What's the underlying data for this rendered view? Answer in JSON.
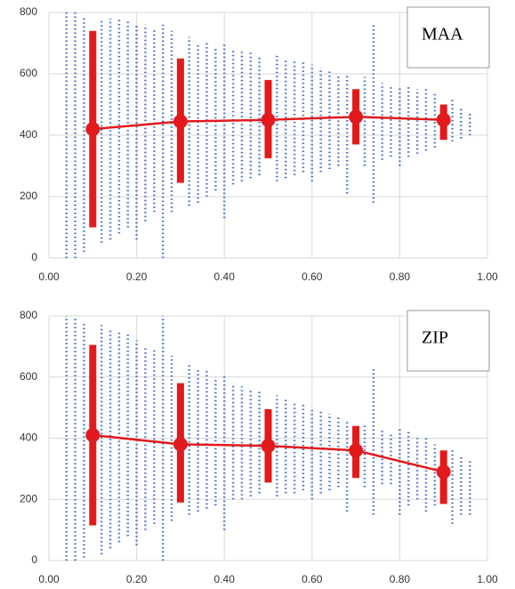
{
  "chart_data": [
    {
      "type": "scatter",
      "annotation": "MAA",
      "xlim": [
        0,
        1
      ],
      "xticks": [
        {
          "value": 0,
          "label": "0.00"
        },
        {
          "value": 0.2,
          "label": "0.20"
        },
        {
          "value": 0.4,
          "label": "0.40"
        },
        {
          "value": 0.6,
          "label": "0.60"
        },
        {
          "value": 0.8,
          "label": "0.80"
        },
        {
          "value": 1,
          "label": "1.00"
        }
      ],
      "ylim": [
        0,
        800
      ],
      "yticks": [
        0,
        200,
        400,
        600,
        800
      ],
      "grid": true,
      "strips": {
        "color": "#4472c4",
        "x": [
          0.04,
          0.06,
          0.08,
          0.12,
          0.14,
          0.16,
          0.18,
          0.2,
          0.22,
          0.24,
          0.26,
          0.28,
          0.32,
          0.34,
          0.36,
          0.38,
          0.4,
          0.42,
          0.44,
          0.46,
          0.48,
          0.52,
          0.54,
          0.56,
          0.58,
          0.6,
          0.62,
          0.64,
          0.66,
          0.68,
          0.72,
          0.74,
          0.76,
          0.78,
          0.8,
          0.82,
          0.84,
          0.86,
          0.88,
          0.92,
          0.94,
          0.96
        ],
        "low": [
          0,
          0,
          20,
          50,
          60,
          80,
          100,
          60,
          120,
          150,
          0,
          150,
          170,
          180,
          200,
          220,
          130,
          240,
          250,
          260,
          270,
          250,
          260,
          270,
          280,
          250,
          280,
          290,
          300,
          210,
          300,
          180,
          320,
          330,
          300,
          330,
          340,
          350,
          360,
          380,
          390,
          400
        ],
        "high": [
          800,
          800,
          790,
          780,
          780,
          780,
          770,
          760,
          760,
          750,
          760,
          740,
          720,
          700,
          700,
          690,
          700,
          680,
          680,
          670,
          660,
          660,
          650,
          640,
          640,
          630,
          620,
          610,
          600,
          600,
          590,
          760,
          570,
          560,
          560,
          560,
          550,
          550,
          540,
          520,
          490,
          470
        ]
      },
      "ranges": {
        "color": "#e31a1c",
        "x": [
          0.1,
          0.3,
          0.5,
          0.7,
          0.9
        ],
        "low": [
          100,
          245,
          325,
          370,
          385
        ],
        "high": [
          740,
          650,
          580,
          550,
          500
        ]
      },
      "mean": {
        "color": "#e31a1c",
        "x": [
          0.1,
          0.3,
          0.5,
          0.7,
          0.9
        ],
        "values": [
          420,
          445,
          450,
          460,
          450
        ]
      }
    },
    {
      "type": "scatter",
      "annotation": "ZIP",
      "xlim": [
        0,
        1
      ],
      "xticks": [
        {
          "value": 0,
          "label": "0.00"
        },
        {
          "value": 0.2,
          "label": "0.20"
        },
        {
          "value": 0.4,
          "label": "0.40"
        },
        {
          "value": 0.6,
          "label": "0.60"
        },
        {
          "value": 0.8,
          "label": "0.80"
        },
        {
          "value": 1,
          "label": "1.00"
        }
      ],
      "ylim": [
        0,
        800
      ],
      "yticks": [
        0,
        200,
        400,
        600,
        800
      ],
      "grid": true,
      "strips": {
        "color": "#4472c4",
        "x": [
          0.04,
          0.06,
          0.08,
          0.12,
          0.14,
          0.16,
          0.18,
          0.2,
          0.22,
          0.24,
          0.26,
          0.28,
          0.32,
          0.34,
          0.36,
          0.38,
          0.4,
          0.42,
          0.44,
          0.46,
          0.48,
          0.52,
          0.54,
          0.56,
          0.58,
          0.6,
          0.62,
          0.64,
          0.66,
          0.68,
          0.72,
          0.74,
          0.76,
          0.78,
          0.8,
          0.82,
          0.84,
          0.86,
          0.88,
          0.92,
          0.94,
          0.96
        ],
        "low": [
          0,
          0,
          10,
          20,
          40,
          60,
          80,
          50,
          100,
          120,
          0,
          130,
          150,
          160,
          170,
          180,
          100,
          200,
          200,
          210,
          220,
          210,
          220,
          220,
          230,
          200,
          220,
          230,
          240,
          160,
          240,
          150,
          250,
          250,
          150,
          180,
          200,
          160,
          180,
          120,
          150,
          150
        ],
        "high": [
          800,
          790,
          780,
          770,
          760,
          750,
          740,
          720,
          700,
          690,
          800,
          670,
          640,
          630,
          620,
          600,
          610,
          580,
          570,
          560,
          560,
          540,
          530,
          520,
          510,
          500,
          490,
          480,
          470,
          460,
          450,
          630,
          430,
          420,
          430,
          420,
          410,
          400,
          380,
          360,
          340,
          330
        ]
      },
      "ranges": {
        "color": "#e31a1c",
        "x": [
          0.1,
          0.3,
          0.5,
          0.7,
          0.9
        ],
        "low": [
          115,
          190,
          255,
          270,
          185
        ],
        "high": [
          705,
          580,
          495,
          440,
          360
        ]
      },
      "mean": {
        "color": "#e31a1c",
        "x": [
          0.1,
          0.3,
          0.5,
          0.7,
          0.9
        ],
        "values": [
          410,
          380,
          375,
          360,
          290
        ]
      }
    }
  ]
}
